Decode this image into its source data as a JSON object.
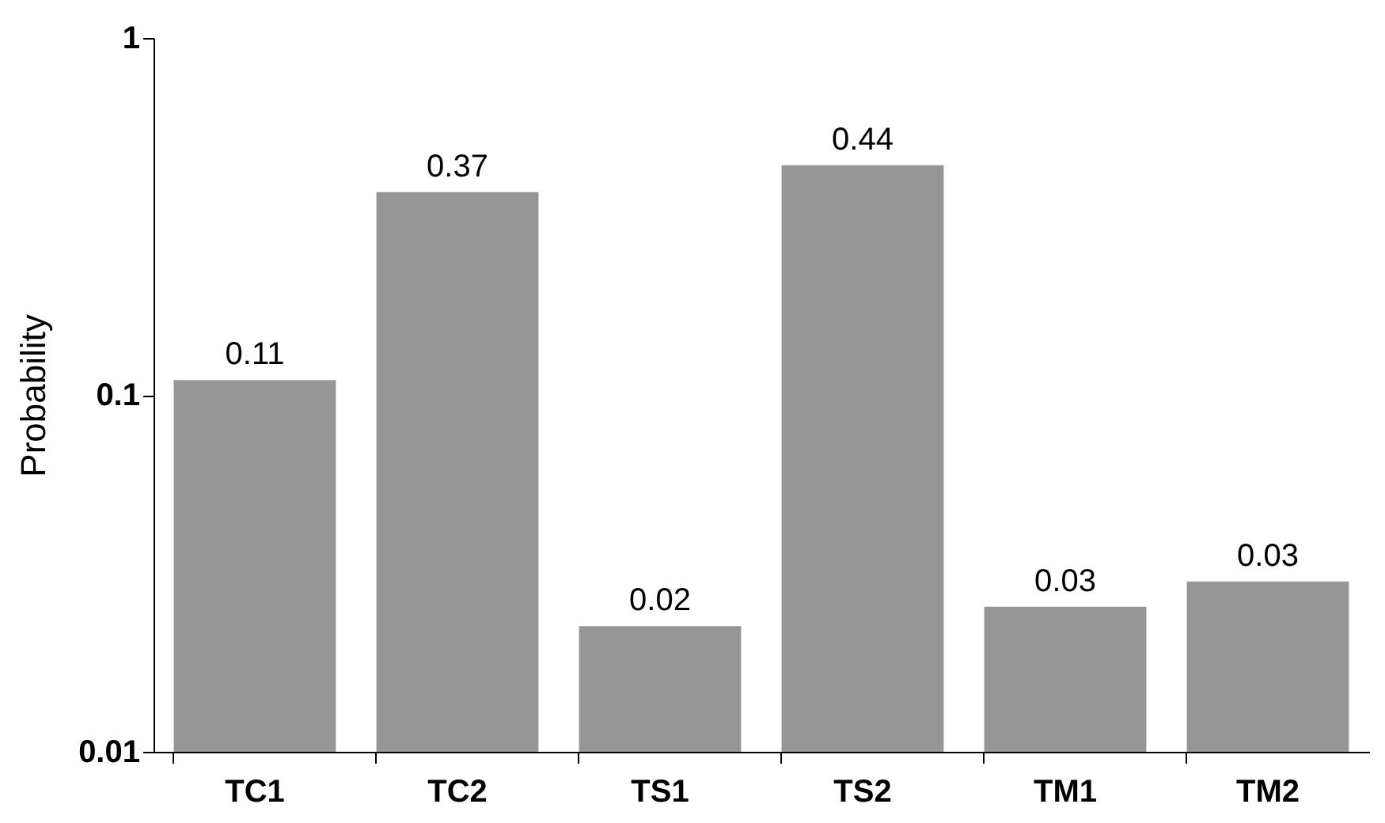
{
  "chart_data": {
    "type": "bar",
    "ylabel": "Probability",
    "categories": [
      "TC1",
      "TC2",
      "TS1",
      "TS2",
      "TM1",
      "TM2"
    ],
    "values": [
      0.11,
      0.37,
      0.0225,
      0.44,
      0.0255,
      0.03
    ],
    "value_labels": [
      "0.11",
      "0.37",
      "0.02",
      "0.44",
      "0.03",
      "0.03"
    ],
    "color": "#969696",
    "log": true,
    "ylim": [
      0.01,
      1
    ],
    "yticks": [
      0.01,
      0.1,
      1
    ],
    "grid": false
  }
}
